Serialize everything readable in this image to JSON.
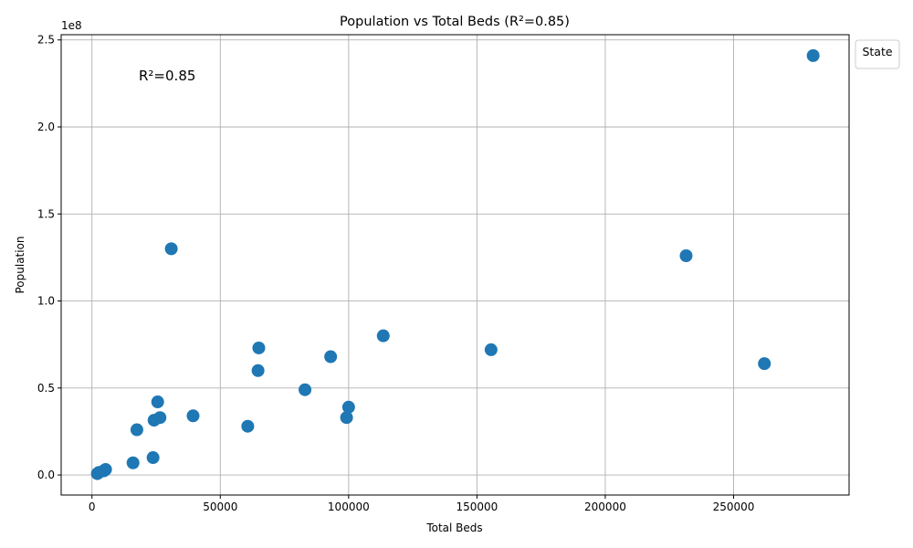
{
  "chart_data": {
    "type": "scatter",
    "title": "Population vs Total Beds (R²=0.85)",
    "xlabel": "Total Beds",
    "ylabel": "Population",
    "y_offset_label": "1e8",
    "annotation": "R²=0.85",
    "legend_title": "State",
    "legend_placement": "outside-top-right",
    "grid": true,
    "xlim": [
      -12000,
      295000
    ],
    "ylim": [
      -11500000,
      253000000
    ],
    "x_ticks": [
      0,
      50000,
      100000,
      150000,
      200000,
      250000
    ],
    "x_tick_labels": [
      "0",
      "50000",
      "100000",
      "150000",
      "200000",
      "250000"
    ],
    "y_ticks": [
      0,
      50000000,
      100000000,
      150000000,
      200000000,
      250000000
    ],
    "y_tick_labels": [
      "0.0",
      "0.5",
      "1.0",
      "1.5",
      "2.0",
      "2.5"
    ],
    "color": "#1f77b4",
    "points": [
      {
        "x": 281000,
        "y": 241000000
      },
      {
        "x": 231500,
        "y": 126000000
      },
      {
        "x": 262000,
        "y": 64000000
      },
      {
        "x": 155500,
        "y": 72000000
      },
      {
        "x": 113500,
        "y": 80000000
      },
      {
        "x": 93000,
        "y": 68000000
      },
      {
        "x": 83000,
        "y": 49000000
      },
      {
        "x": 100000,
        "y": 39000000
      },
      {
        "x": 99200,
        "y": 33000000
      },
      {
        "x": 65000,
        "y": 73000000
      },
      {
        "x": 64700,
        "y": 60000000
      },
      {
        "x": 60700,
        "y": 28000000
      },
      {
        "x": 39400,
        "y": 34000000
      },
      {
        "x": 30900,
        "y": 130000000
      },
      {
        "x": 25600,
        "y": 42000000
      },
      {
        "x": 26500,
        "y": 33000000
      },
      {
        "x": 24200,
        "y": 31500000
      },
      {
        "x": 17500,
        "y": 26000000
      },
      {
        "x": 23800,
        "y": 10000000
      },
      {
        "x": 16000,
        "y": 7000000
      },
      {
        "x": 5300,
        "y": 3200000
      },
      {
        "x": 4600,
        "y": 2400000
      },
      {
        "x": 2700,
        "y": 1500000
      },
      {
        "x": 2100,
        "y": 800000
      }
    ]
  }
}
